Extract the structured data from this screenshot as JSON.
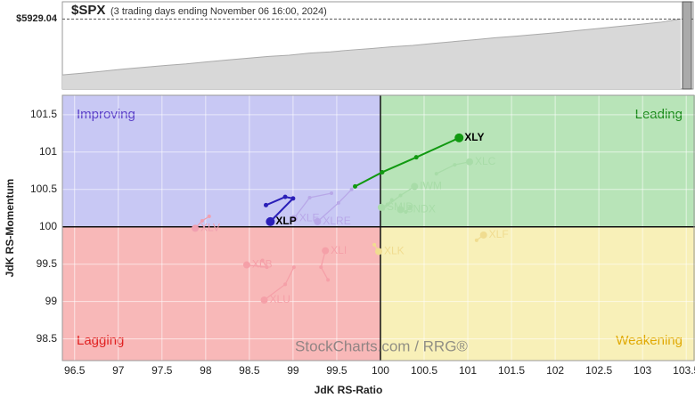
{
  "chart_data": [
    {
      "type": "area",
      "title": "$SPX",
      "subtitle": "(3 trading days ending November 06 16:00, 2024)",
      "color": "#d8d8d8",
      "values": [
        3750,
        3820,
        3900,
        3980,
        4050,
        4120,
        4180,
        4260,
        4330,
        4400,
        4470,
        4520,
        4600,
        4650,
        4720,
        4780,
        4850,
        4900,
        4980,
        5050,
        5120,
        5200,
        5260,
        5330,
        5400,
        5480,
        5560,
        5640,
        5720,
        5800,
        5929.04
      ],
      "ylim": [
        3200,
        6600
      ],
      "price_label": {
        "value": 5929.04,
        "label": "$5929.04"
      }
    },
    {
      "type": "rrg",
      "x_label": "JdK RS-Ratio",
      "y_label": "JdK RS-Momentum",
      "watermark": "StockCharts.com / RRG®",
      "center_x": 100,
      "center_y": 100,
      "quadrants": [
        {
          "label": "Improving",
          "color": "#c8c8f4",
          "text_color": "#5a3fc8"
        },
        {
          "label": "Leading",
          "color": "#b8e4b8",
          "text_color": "#1a8a1a"
        },
        {
          "label": "Lagging",
          "color": "#f8b8b8",
          "text_color": "#e02020"
        },
        {
          "label": "Weakening",
          "color": "#f8f0b8",
          "text_color": "#e0a800"
        }
      ],
      "xlim": [
        96.36,
        103.6
      ],
      "ylim": [
        98.21,
        101.76
      ],
      "xticks": [
        96.5,
        97,
        97.5,
        98,
        98.5,
        99,
        99.5,
        100,
        100.5,
        101,
        101.5,
        102,
        102.5,
        103,
        103.5
      ],
      "yticks": [
        98.5,
        99,
        99.5,
        100,
        100.5,
        101,
        101.5
      ],
      "series": [
        {
          "name": "XLV",
          "color": "#f0a0b0",
          "x": [
            98.04,
            97.96,
            97.88
          ],
          "values": [
            100.14,
            100.08,
            99.98
          ]
        },
        {
          "name": "XLE",
          "color": "#b8a8e8",
          "x": [
            99.44,
            99.19,
            99.01
          ],
          "values": [
            100.45,
            100.39,
            100.11
          ]
        },
        {
          "name": "XLRE",
          "color": "#b8a8e8",
          "x": [
            99.67,
            99.52,
            99.28
          ],
          "values": [
            100.5,
            100.32,
            100.07
          ]
        },
        {
          "name": "XLB",
          "color": "#f5a0a8",
          "x": [
            98.65,
            98.7,
            98.47
          ],
          "values": [
            99.55,
            99.46,
            99.49
          ]
        },
        {
          "name": "XLU",
          "color": "#f5a0a8",
          "x": [
            99.01,
            98.91,
            98.67
          ],
          "values": [
            99.46,
            99.23,
            99.02
          ]
        },
        {
          "name": "XLI",
          "color": "#f5a0a8",
          "x": [
            99.4,
            99.32,
            99.37
          ],
          "values": [
            99.29,
            99.46,
            99.68
          ]
        },
        {
          "name": "IWM",
          "color": "#a8dca8",
          "x": [
            100.03,
            100.23,
            100.39
          ],
          "values": [
            100.24,
            100.42,
            100.54
          ]
        },
        {
          "name": "SMID",
          "color": "#a8dca8",
          "x": [
            100.13,
            100.08,
            100.01
          ],
          "values": [
            100.36,
            100.3,
            100.26
          ]
        },
        {
          "name": "SNDX",
          "color": "#a8dca8",
          "x": [
            100.34,
            100.29,
            100.23
          ],
          "values": [
            100.26,
            100.2,
            100.23
          ]
        },
        {
          "name": "XLC",
          "color": "#a8dca8",
          "x": [
            100.64,
            100.85,
            101.02
          ],
          "values": [
            100.71,
            100.83,
            100.87
          ]
        },
        {
          "name": "XLK",
          "color": "#f0dc90",
          "x": [
            99.93,
            99.98
          ],
          "values": [
            99.76,
            99.67
          ]
        },
        {
          "name": "XLF",
          "color": "#f0dc90",
          "x": [
            101.1,
            101.18
          ],
          "values": [
            99.82,
            99.89
          ]
        },
        {
          "name": "XLY",
          "color": "#119911",
          "x": [
            99.71,
            100.02,
            100.41,
            100.9
          ],
          "values": [
            100.54,
            100.73,
            100.93,
            101.19
          ]
        },
        {
          "name": "XLP",
          "color": "#2a1fb8",
          "x": [
            98.69,
            98.91,
            99.0,
            98.74
          ],
          "values": [
            100.29,
            100.4,
            100.38,
            100.07
          ]
        }
      ]
    }
  ]
}
